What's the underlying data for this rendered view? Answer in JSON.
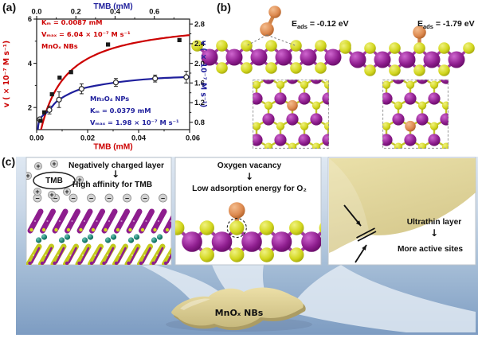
{
  "panels": {
    "a": "(a)",
    "b": "(b)",
    "c": "(c)"
  },
  "colors": {
    "red": "#cc0000",
    "blue": "#1f1f9c",
    "marker": "#1a1a1a",
    "purple_atom": "#8e1d8e",
    "yellow_atom": "#d2d61e",
    "orange_atom": "#dd8a50",
    "teal_atom": "#1b8473",
    "belt_tan": "#d9cc8e",
    "panel_c_bg_top": "#dfe8f2",
    "panel_c_bg_bottom": "#7d9cc2"
  },
  "chart_data": {
    "type": "scatter",
    "title": "",
    "grid": false,
    "legend_position": "none",
    "axes": {
      "bottom": {
        "label": "TMB (mM)",
        "color": "#cc0000",
        "range": [
          0,
          0.06
        ],
        "ticks": [
          "0.00",
          "0.02",
          "0.04",
          "0.06"
        ],
        "tick_values": [
          0,
          0.02,
          0.04,
          0.06
        ],
        "minor_ticks": [
          0.01,
          0.03,
          0.05
        ]
      },
      "top": {
        "label": "TMB (mM)",
        "color": "#1f1f9c",
        "range": [
          0,
          0.78
        ],
        "ticks": [
          "0.0",
          "0.2",
          "0.4",
          "0.6"
        ],
        "tick_values": [
          0,
          0.2,
          0.4,
          0.6
        ],
        "minor_ticks": [
          0.1,
          0.3,
          0.5,
          0.7
        ]
      },
      "left": {
        "label": "v ( × 10⁻⁷ M s⁻¹)",
        "color": "#cc0000",
        "range": [
          1,
          6
        ],
        "ticks": [
          "2",
          "4",
          "6"
        ],
        "tick_values": [
          2,
          4,
          6
        ],
        "minor_ticks": [
          3,
          5
        ]
      },
      "right": {
        "label": "v ( × 10⁻⁷ M s⁻¹)",
        "color": "#1f1f9c",
        "range": [
          0.65,
          2.9
        ],
        "ticks": [
          "0.8",
          "1.2",
          "1.6",
          "2.0",
          "2.4",
          "2.8"
        ],
        "tick_values": [
          0.8,
          1.2,
          1.6,
          2.0,
          2.4,
          2.8
        ],
        "minor_ticks": [
          1.0,
          1.4,
          1.8,
          2.2,
          2.6
        ]
      }
    },
    "series": [
      {
        "name": "MnOₓ NBs",
        "marker": "filled-square",
        "marker_color": "#1a1a1a",
        "line_color": "#cc0000",
        "x_axis": "bottom",
        "y_axis": "left",
        "x": [
          0.0015,
          0.003,
          0.006,
          0.009,
          0.0135,
          0.028,
          0.056
        ],
        "y": [
          1.4,
          1.78,
          2.6,
          3.35,
          3.6,
          4.85,
          5.05
        ],
        "fit": {
          "model": "Michaelis-Menten",
          "Vmax": 6.04,
          "Km": 0.0087
        }
      },
      {
        "name": "Mn₃O₄ NPs",
        "marker": "open-circle",
        "marker_color": "#2a2a2a",
        "line_color": "#1f1f9c",
        "x_axis": "top",
        "y_axis": "right",
        "x": [
          0.016,
          0.065,
          0.114,
          0.229,
          0.404,
          0.604,
          0.763
        ],
        "y": [
          0.86,
          1.05,
          1.26,
          1.48,
          1.61,
          1.69,
          1.72
        ],
        "yerr": [
          0,
          0.08,
          0.16,
          0.1,
          0.08,
          0.07,
          0.12
        ]
      }
    ],
    "annotations": {
      "red": [
        "Kₘ = 0.0087 mM",
        "Vₘₐₓ = 6.04 × 10⁻⁷ M s⁻¹",
        "MnOₓ NBs"
      ],
      "blue": [
        "Mn₃O₄ NPs",
        "Kₘ = 0.0379 mM",
        "Vₘₐₓ = 1.98 × 10⁻⁷ M s⁻¹"
      ]
    }
  },
  "panel_b": {
    "left_label": {
      "base": "E",
      "sub": "ads",
      "value": " = -0.12 eV"
    },
    "right_label": {
      "base": "E",
      "sub": "ads",
      "value": " = -1.79 eV"
    }
  },
  "panel_c": {
    "box1": {
      "line1": "Negatively charged layer",
      "arrow": "↓",
      "line2": "High affinity for TMB",
      "molecule": "TMB",
      "plus": "+",
      "minus": "−"
    },
    "box2": {
      "line1": "Oxygen vacancy",
      "arrow": "↓",
      "line2": "Low  adsorption energy for O₂"
    },
    "box3": {
      "line1": "Ultrathin layer",
      "arrow": "↓",
      "line2": "More active sites"
    },
    "belt_label": "MnOₓ NBs"
  }
}
